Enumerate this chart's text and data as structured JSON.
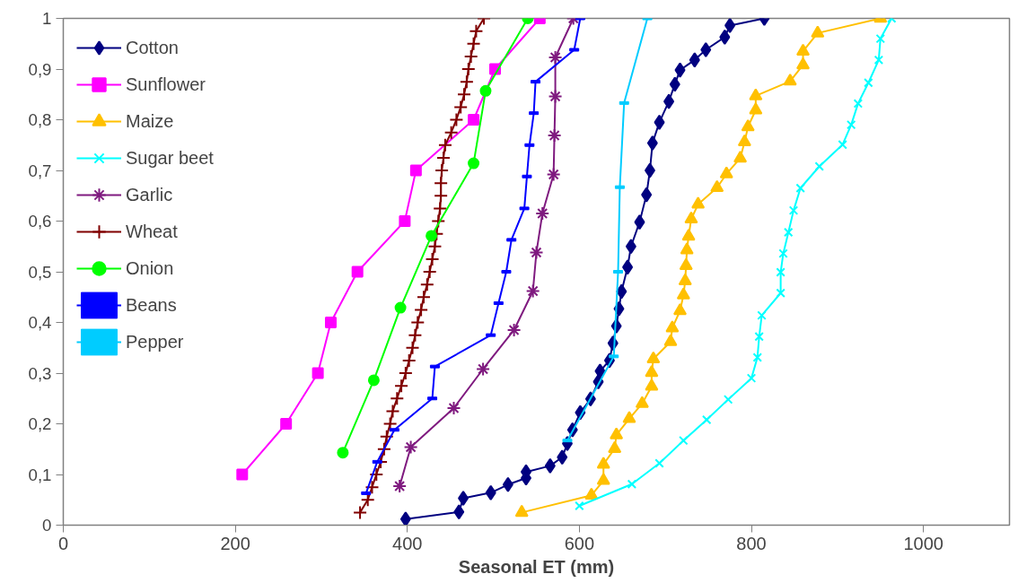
{
  "chart_data": {
    "type": "line",
    "xlabel": "Seasonal ET (mm)",
    "xlim": [
      0,
      1100
    ],
    "xticks": [
      0,
      200,
      400,
      600,
      800,
      1000
    ],
    "ylim": [
      0,
      1
    ],
    "yticks": [
      0,
      {
        "value": 0.1,
        "label": "0,1"
      },
      {
        "value": 0.2,
        "label": "0,2"
      },
      {
        "value": 0.3,
        "label": "0,3"
      },
      {
        "value": 0.4,
        "label": "0,4"
      },
      {
        "value": 0.5,
        "label": "0,5"
      },
      {
        "value": 0.6,
        "label": "0,6"
      },
      {
        "value": 0.7,
        "label": "0,7"
      },
      {
        "value": 0.8,
        "label": "0,8"
      },
      {
        "value": 0.9,
        "label": "0,9"
      },
      1
    ],
    "grid": false,
    "legend": "top left",
    "line_style": "solid",
    "series": [
      {
        "name": "Cotton",
        "color": "#000080",
        "marker": "diamond",
        "x": [
          398,
          460,
          465,
          497,
          517,
          538,
          538,
          566,
          580,
          586,
          592,
          601,
          613,
          622,
          624,
          635,
          639,
          643,
          646,
          649,
          656,
          660,
          670,
          678,
          682,
          685,
          693,
          704,
          711,
          717,
          734,
          747,
          769,
          775,
          815
        ],
        "values": [
          0.012,
          0.026,
          0.053,
          0.064,
          0.08,
          0.093,
          0.105,
          0.117,
          0.134,
          0.161,
          0.188,
          0.222,
          0.249,
          0.283,
          0.304,
          0.325,
          0.359,
          0.393,
          0.427,
          0.461,
          0.509,
          0.55,
          0.598,
          0.652,
          0.7,
          0.754,
          0.795,
          0.836,
          0.87,
          0.898,
          0.918,
          0.938,
          0.963,
          0.986,
          1.0
        ]
      },
      {
        "name": "Sunflower",
        "color": "#ff00ff",
        "marker": "square",
        "x": [
          208,
          259,
          296,
          311,
          342,
          397,
          410,
          477,
          502,
          554
        ],
        "values": [
          0.1,
          0.2,
          0.3,
          0.4,
          0.5,
          0.6,
          0.7,
          0.8,
          0.9,
          1.0
        ]
      },
      {
        "name": "Maize",
        "color": "#ffc000",
        "marker": "triangle",
        "x": [
          533,
          614,
          628,
          628,
          641,
          643,
          658,
          673,
          684,
          684,
          686,
          706,
          708,
          717,
          721,
          723,
          724,
          725,
          727,
          730,
          738,
          760,
          771,
          787,
          792,
          796,
          805,
          805,
          845,
          860,
          860,
          877,
          950
        ],
        "values": [
          0.025,
          0.059,
          0.088,
          0.12,
          0.151,
          0.178,
          0.21,
          0.24,
          0.274,
          0.301,
          0.328,
          0.362,
          0.389,
          0.423,
          0.454,
          0.482,
          0.512,
          0.543,
          0.57,
          0.604,
          0.633,
          0.666,
          0.693,
          0.724,
          0.756,
          0.786,
          0.819,
          0.847,
          0.876,
          0.908,
          0.935,
          0.971,
          1.0
        ]
      },
      {
        "name": "Sugar beet",
        "color": "#00ffff",
        "marker": "x",
        "x": [
          600,
          661,
          693,
          721,
          748,
          773,
          800,
          807,
          809,
          812,
          834,
          834,
          837,
          843,
          849,
          857,
          879,
          906,
          916,
          924,
          936,
          948,
          950,
          963
        ],
        "values": [
          0.038,
          0.081,
          0.122,
          0.167,
          0.208,
          0.248,
          0.29,
          0.331,
          0.372,
          0.414,
          0.458,
          0.499,
          0.536,
          0.578,
          0.621,
          0.665,
          0.708,
          0.751,
          0.79,
          0.832,
          0.873,
          0.918,
          0.96,
          1.0
        ]
      },
      {
        "name": "Garlic",
        "color": "#7f1a7f",
        "marker": "cross",
        "x": [
          391,
          404,
          454,
          488,
          524,
          546,
          550,
          557,
          570,
          571,
          572,
          572,
          593
        ],
        "values": [
          0.077,
          0.154,
          0.231,
          0.308,
          0.385,
          0.462,
          0.538,
          0.615,
          0.692,
          0.769,
          0.846,
          0.923,
          1.0
        ]
      },
      {
        "name": "Wheat",
        "color": "#800000",
        "marker": "cross",
        "x": [
          345,
          354,
          359,
          364,
          369,
          373,
          376,
          380,
          383,
          388,
          393,
          398,
          402,
          406,
          409,
          412,
          416,
          419,
          423,
          426,
          429,
          432,
          434,
          436,
          438,
          439,
          439,
          440,
          442,
          444,
          451,
          457,
          462,
          466,
          469,
          471,
          474,
          477,
          480,
          489
        ],
        "values": [
          0.025,
          0.05,
          0.075,
          0.1,
          0.125,
          0.15,
          0.175,
          0.2,
          0.225,
          0.25,
          0.275,
          0.3,
          0.325,
          0.35,
          0.375,
          0.4,
          0.425,
          0.45,
          0.475,
          0.5,
          0.525,
          0.55,
          0.575,
          0.6,
          0.625,
          0.65,
          0.675,
          0.7,
          0.725,
          0.75,
          0.775,
          0.8,
          0.825,
          0.85,
          0.875,
          0.9,
          0.925,
          0.95,
          0.975,
          1.0
        ]
      },
      {
        "name": "Onion",
        "color": "#00ff00",
        "marker": "circle",
        "x": [
          325,
          361,
          392,
          428,
          477,
          491,
          540
        ],
        "values": [
          0.143,
          0.286,
          0.429,
          0.571,
          0.714,
          0.857,
          1.0
        ]
      },
      {
        "name": "Beans",
        "color": "#0000ff",
        "marker": "square",
        "x": [
          352,
          365,
          385,
          429,
          432,
          497,
          506,
          515,
          521,
          536,
          539,
          542,
          547,
          549,
          594,
          601
        ],
        "values": [
          0.063,
          0.125,
          0.188,
          0.25,
          0.313,
          0.375,
          0.438,
          0.5,
          0.563,
          0.625,
          0.688,
          0.75,
          0.813,
          0.875,
          0.938,
          1.0
        ]
      },
      {
        "name": "Pepper",
        "color": "#00ccff",
        "marker": "square",
        "x": [
          586,
          640,
          645,
          647,
          652,
          679
        ],
        "values": [
          0.167,
          0.333,
          0.5,
          0.667,
          0.833,
          1.0
        ]
      }
    ]
  }
}
